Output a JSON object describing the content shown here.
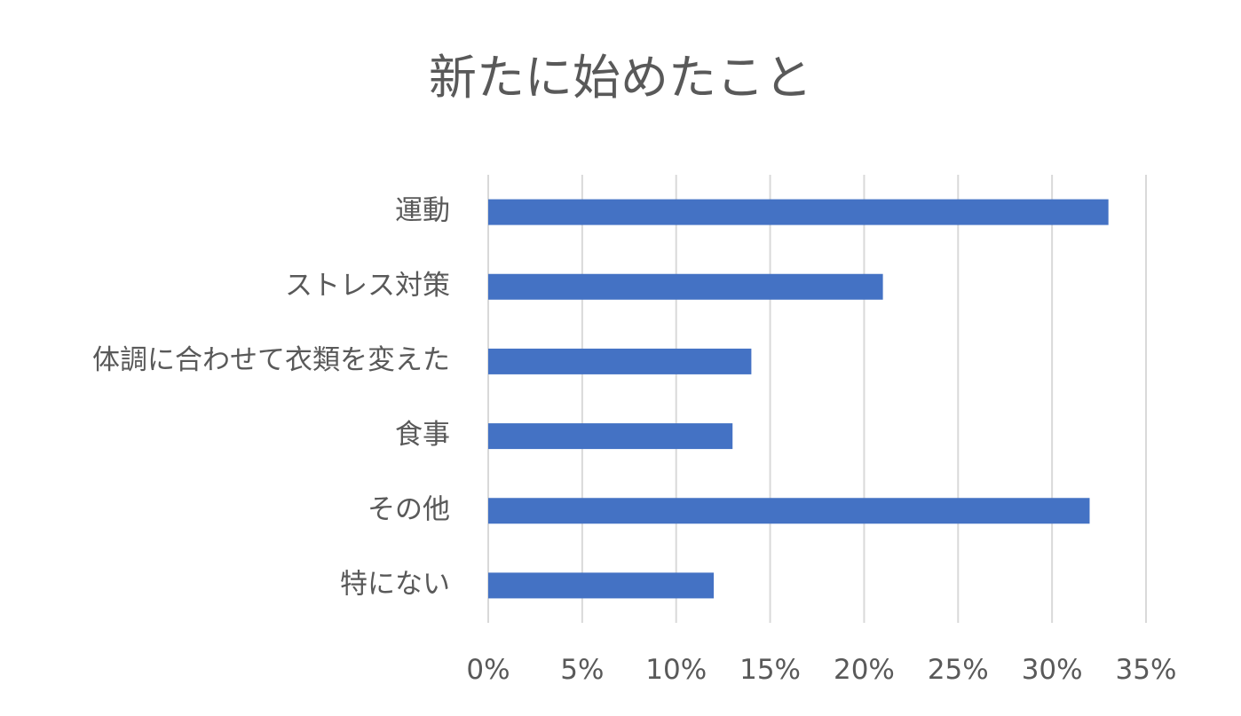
{
  "chart_data": {
    "type": "bar",
    "orientation": "horizontal",
    "title": "新たに始めたこと",
    "categories": [
      "運動",
      "ストレス対策",
      "体調に合わせて衣類を変えた",
      "食事",
      "その他",
      "特にない"
    ],
    "values": [
      33,
      21,
      14,
      13,
      32,
      12
    ],
    "xlim": [
      0,
      35
    ],
    "xticks": [
      0,
      5,
      10,
      15,
      20,
      25,
      30,
      35
    ],
    "tick_suffix": "%",
    "grid": true,
    "legend": "none",
    "bar_color": "#4472C4",
    "grid_color": "#D9D9D9"
  }
}
